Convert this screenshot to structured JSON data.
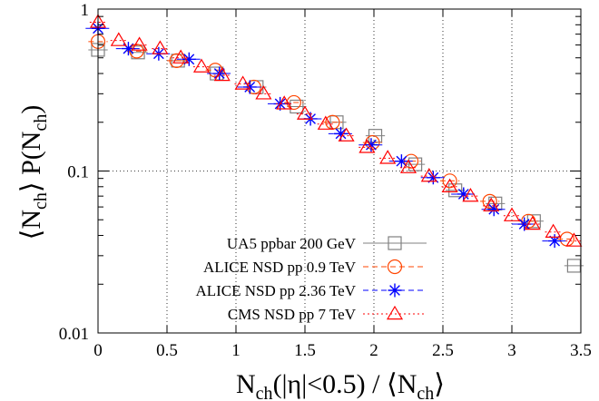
{
  "chart_data": {
    "type": "scatter",
    "xlabel": {
      "main": "N",
      "sub": "ch",
      "rest": "(|η|<0.5) / ⟨N",
      "sub2": "ch",
      "end": "⟩"
    },
    "ylabel": {
      "p1": "⟨N",
      "s1": "ch",
      "p2": "⟩  P(N",
      "s2": "ch",
      "p3": ")"
    },
    "xlim": [
      0,
      3.5
    ],
    "ylim": [
      0.01,
      1
    ],
    "y_scale": "log",
    "grid": true,
    "legend_position": "bottom-left",
    "x_ticks": [
      {
        "value": 0,
        "label": "0"
      },
      {
        "value": 0.5,
        "label": "0.5"
      },
      {
        "value": 1,
        "label": "1"
      },
      {
        "value": 1.5,
        "label": "1.5"
      },
      {
        "value": 2,
        "label": "2"
      },
      {
        "value": 2.5,
        "label": "2.5"
      },
      {
        "value": 3,
        "label": "3"
      },
      {
        "value": 3.5,
        "label": "3.5"
      }
    ],
    "y_ticks": [
      {
        "value": 1,
        "label": "1"
      },
      {
        "value": 0.1,
        "label": "0.1"
      },
      {
        "value": 0.01,
        "label": "0.01"
      }
    ],
    "series": [
      {
        "name": "UA5 ppbar 200 GeV",
        "color": "#808080",
        "marker": "square",
        "line": "solid",
        "x": [
          0.0,
          0.29,
          0.58,
          0.86,
          1.15,
          1.44,
          1.73,
          2.01,
          2.3,
          2.59,
          2.88,
          3.16,
          3.45
        ],
        "y": [
          0.56,
          0.54,
          0.48,
          0.4,
          0.33,
          0.25,
          0.2,
          0.165,
          0.11,
          0.076,
          0.063,
          0.049,
          0.026
        ],
        "xerr": [
          0.07,
          0.07,
          0.07,
          0.07,
          0.07,
          0.07,
          0.07,
          0.07,
          0.07,
          0.07,
          0.07,
          0.07,
          0.07
        ]
      },
      {
        "name": "ALICE NSD pp 0.9 TeV",
        "color": "#ff4500",
        "marker": "circle",
        "line": "dashed",
        "x": [
          0.0,
          0.28,
          0.57,
          0.85,
          1.13,
          1.42,
          1.7,
          1.99,
          2.27,
          2.55,
          2.84,
          3.12,
          3.4
        ],
        "y": [
          0.63,
          0.55,
          0.48,
          0.42,
          0.33,
          0.265,
          0.2,
          0.15,
          0.115,
          0.087,
          0.065,
          0.049,
          0.038
        ],
        "xerr": [
          0.07,
          0.07,
          0.07,
          0.07,
          0.07,
          0.07,
          0.07,
          0.07,
          0.07,
          0.07,
          0.07,
          0.07,
          0.07
        ]
      },
      {
        "name": "ALICE NSD pp 2.36 TeV",
        "color": "#0000ff",
        "marker": "star",
        "line": "dashed",
        "x": [
          0.0,
          0.22,
          0.44,
          0.66,
          0.88,
          1.1,
          1.32,
          1.54,
          1.76,
          1.98,
          2.2,
          2.43,
          2.65,
          2.87,
          3.09,
          3.31
        ],
        "y": [
          0.76,
          0.57,
          0.53,
          0.49,
          0.4,
          0.33,
          0.26,
          0.21,
          0.17,
          0.145,
          0.115,
          0.091,
          0.072,
          0.058,
          0.047,
          0.037
        ],
        "xerr": [
          0.09,
          0.09,
          0.09,
          0.09,
          0.09,
          0.09,
          0.09,
          0.09,
          0.09,
          0.09,
          0.09,
          0.09,
          0.09,
          0.09,
          0.09,
          0.09
        ]
      },
      {
        "name": "CMS NSD pp 7 TeV",
        "color": "#ff0000",
        "marker": "triangle",
        "line": "dotted",
        "x": [
          0.0,
          0.15,
          0.3,
          0.45,
          0.6,
          0.75,
          0.9,
          1.05,
          1.2,
          1.35,
          1.5,
          1.65,
          1.8,
          1.95,
          2.1,
          2.25,
          2.4,
          2.55,
          2.7,
          2.85,
          3.0,
          3.15,
          3.3,
          3.45
        ],
        "y": [
          0.83,
          0.64,
          0.6,
          0.57,
          0.5,
          0.44,
          0.39,
          0.345,
          0.3,
          0.26,
          0.225,
          0.195,
          0.165,
          0.14,
          0.12,
          0.105,
          0.093,
          0.08,
          0.07,
          0.061,
          0.053,
          0.047,
          0.042,
          0.037
        ],
        "xerr": [
          0.06,
          0.06,
          0.06,
          0.06,
          0.06,
          0.06,
          0.06,
          0.06,
          0.06,
          0.06,
          0.06,
          0.06,
          0.06,
          0.06,
          0.06,
          0.06,
          0.06,
          0.06,
          0.06,
          0.06,
          0.06,
          0.06,
          0.06,
          0.06
        ]
      }
    ]
  }
}
